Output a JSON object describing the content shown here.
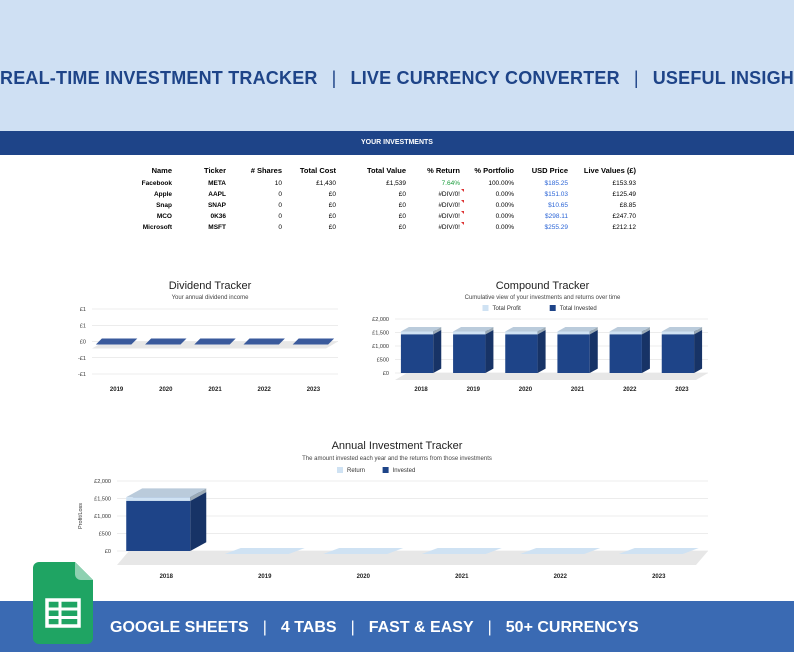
{
  "header": {
    "items": [
      "REAL-TIME INVESTMENT TRACKER",
      "LIVE CURRENCY CONVERTER",
      "USEFUL INSIGHTS"
    ],
    "separator": "|"
  },
  "section_title": "YOUR INVESTMENTS",
  "investments": {
    "columns": [
      "Name",
      "Ticker",
      "# Shares",
      "Total Cost",
      "Total Value",
      "% Return",
      "% Portfolio",
      "USD Price",
      "Live Values (£)"
    ],
    "rows": [
      {
        "name": "Facebook",
        "ticker": "META",
        "shares": "10",
        "cost": "£1,430",
        "value": "£1,539",
        "ret": "7.64%",
        "portfolio": "100.00%",
        "usd": "$185.25",
        "live": "£153.93"
      },
      {
        "name": "Apple",
        "ticker": "AAPL",
        "shares": "0",
        "cost": "£0",
        "value": "£0",
        "ret": "#DIV/0!",
        "portfolio": "0.00%",
        "usd": "$151.03",
        "live": "£125.49"
      },
      {
        "name": "Snap",
        "ticker": "SNAP",
        "shares": "0",
        "cost": "£0",
        "value": "£0",
        "ret": "#DIV/0!",
        "portfolio": "0.00%",
        "usd": "$10.65",
        "live": "£8.85"
      },
      {
        "name": "MCO",
        "ticker": "0K36",
        "shares": "0",
        "cost": "£0",
        "value": "£0",
        "ret": "#DIV/0!",
        "portfolio": "0.00%",
        "usd": "$298.11",
        "live": "£247.70"
      },
      {
        "name": "Microsoft",
        "ticker": "MSFT",
        "shares": "0",
        "cost": "£0",
        "value": "£0",
        "ret": "#DIV/0!",
        "portfolio": "0.00%",
        "usd": "$255.29",
        "live": "£212.12"
      }
    ]
  },
  "chart_data": [
    {
      "type": "bar",
      "title": "Dividend Tracker",
      "subtitle": "Your annual dividend income",
      "categories": [
        "2019",
        "2020",
        "2021",
        "2022",
        "2023"
      ],
      "series": [
        {
          "values": [
            0,
            0,
            0,
            0,
            0
          ]
        }
      ],
      "ytick_labels": [
        "£1",
        "£1",
        "£0",
        "-£1",
        "-£1"
      ],
      "ylim": [
        -1,
        1
      ],
      "grid": true,
      "color": "#3a5a9c"
    },
    {
      "type": "bar",
      "title": "Compound Tracker",
      "subtitle": "Cumulative view of your investments and returns over time",
      "categories": [
        "2018",
        "2019",
        "2020",
        "2021",
        "2022",
        "2023"
      ],
      "series": [
        {
          "name": "Total Profit",
          "values": [
            109,
            109,
            109,
            109,
            109,
            109
          ],
          "color": "#cfe2f3"
        },
        {
          "name": "Total Invested",
          "values": [
            1430,
            1430,
            1430,
            1430,
            1430,
            1430
          ],
          "color": "#1e4488"
        }
      ],
      "stacked": true,
      "ytick_labels": [
        "£2,000",
        "£1,500",
        "£1,000",
        "£500",
        "£0"
      ],
      "ylim": [
        0,
        2000
      ],
      "legend": "top",
      "grid": true
    },
    {
      "type": "bar",
      "title": "Annual Investment Tracker",
      "subtitle": "The amount invested each year and the returns from those investments",
      "categories": [
        "2018",
        "2019",
        "2020",
        "2021",
        "2022",
        "2023"
      ],
      "series": [
        {
          "name": "Return",
          "values": [
            109,
            0,
            0,
            0,
            0,
            0
          ],
          "color": "#cfe2f3"
        },
        {
          "name": "Invested",
          "values": [
            1430,
            0,
            0,
            0,
            0,
            0
          ],
          "color": "#1e4488"
        }
      ],
      "stacked": true,
      "ylabel": "Profit/Loss",
      "ytick_labels": [
        "£2,000",
        "£1,500",
        "£1,000",
        "£500",
        "£0"
      ],
      "ylim": [
        0,
        2000
      ],
      "legend": "top",
      "grid": true
    }
  ],
  "footer": {
    "items": [
      "GOOGLE SHEETS",
      "4 TABS",
      "FAST & EASY",
      "50+ CURRENCYS"
    ],
    "separator": "|"
  },
  "colors": {
    "brand_dark": "#1e4488",
    "brand_light": "#cfe0f3",
    "footer_bg": "#3a6ab3",
    "positive": "#1a9d3c",
    "link": "#2a64d6"
  },
  "icons": {
    "footer_logo": "google-sheets-icon"
  }
}
